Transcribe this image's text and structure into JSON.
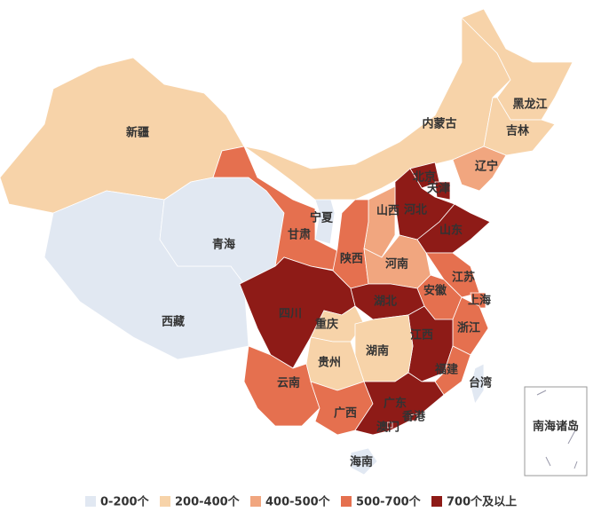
{
  "map": {
    "regions": [
      {
        "name": "新疆",
        "color": "#f7d3a9"
      },
      {
        "name": "西藏",
        "color": "#e1e8f2"
      },
      {
        "name": "青海",
        "color": "#e1e8f2"
      },
      {
        "name": "甘肃",
        "color": "#e5704f"
      },
      {
        "name": "宁夏",
        "color": "#e1e8f2"
      },
      {
        "name": "内蒙古",
        "color": "#f7d3a9"
      },
      {
        "name": "黑龙江",
        "color": "#f7d3a9"
      },
      {
        "name": "吉林",
        "color": "#f7d3a9"
      },
      {
        "name": "辽宁",
        "color": "#f1a67f"
      },
      {
        "name": "北京",
        "color": "#8e1b17"
      },
      {
        "name": "天津",
        "color": "#8e1b17"
      },
      {
        "name": "河北",
        "color": "#8e1b17"
      },
      {
        "name": "山西",
        "color": "#f1a67f"
      },
      {
        "name": "山东",
        "color": "#8e1b17"
      },
      {
        "name": "陕西",
        "color": "#e5704f"
      },
      {
        "name": "河南",
        "color": "#f1a67f"
      },
      {
        "name": "江苏",
        "color": "#e5704f"
      },
      {
        "name": "上海",
        "color": "#e5704f"
      },
      {
        "name": "安徽",
        "color": "#e5704f"
      },
      {
        "name": "湖北",
        "color": "#8e1b17"
      },
      {
        "name": "四川",
        "color": "#8e1b17"
      },
      {
        "name": "重庆",
        "color": "#f7d3a9"
      },
      {
        "name": "浙江",
        "color": "#e5704f"
      },
      {
        "name": "江西",
        "color": "#8e1b17"
      },
      {
        "name": "湖南",
        "color": "#f7d3a9"
      },
      {
        "name": "贵州",
        "color": "#f7d3a9"
      },
      {
        "name": "福建",
        "color": "#e5704f"
      },
      {
        "name": "云南",
        "color": "#e5704f"
      },
      {
        "name": "广西",
        "color": "#e5704f"
      },
      {
        "name": "广东",
        "color": "#8e1b17"
      },
      {
        "name": "香港",
        "color": "#8e1b17"
      },
      {
        "name": "澳门",
        "color": "#8e1b17"
      },
      {
        "name": "海南",
        "color": "#e1e8f2"
      },
      {
        "name": "台湾",
        "color": "#e1e8f2"
      }
    ],
    "inset_label": "南海诸岛",
    "legend": [
      {
        "label": "0-200个",
        "color": "#e1e8f2"
      },
      {
        "label": "200-400个",
        "color": "#f7d3a9"
      },
      {
        "label": "400-500个",
        "color": "#f1a67f"
      },
      {
        "label": "500-700个",
        "color": "#e5704f"
      },
      {
        "label": "700个及以上",
        "color": "#8e1b17"
      }
    ]
  }
}
